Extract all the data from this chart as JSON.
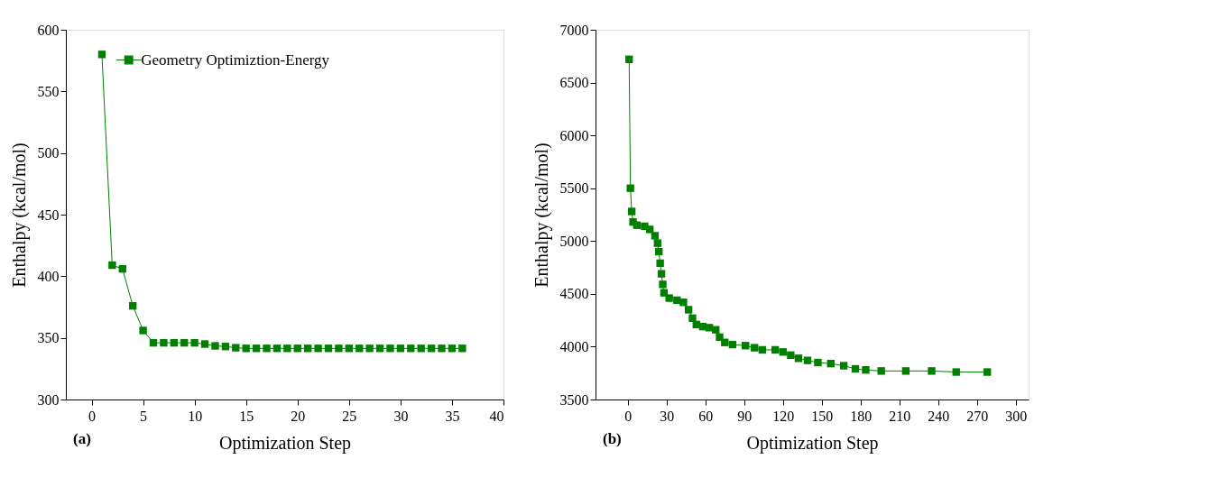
{
  "chart_data": [
    {
      "type": "line",
      "xlabel": "Optimization Step",
      "ylabel": "Enthalpy (kcal/mol)",
      "annotations": [
        "(a)"
      ],
      "xlim": [
        -2.5,
        40
      ],
      "xticks": [
        0,
        5,
        10,
        15,
        20,
        25,
        30,
        35,
        40
      ],
      "ylim": [
        300,
        600
      ],
      "yticks": [
        300,
        350,
        400,
        450,
        500,
        550,
        600
      ],
      "x": [
        1,
        2,
        3,
        4,
        5,
        6,
        7,
        8,
        9,
        10,
        11,
        12,
        13,
        14,
        15,
        16,
        17,
        18,
        19,
        20,
        21,
        22,
        23,
        24,
        25,
        26,
        27,
        28,
        29,
        30,
        31,
        32,
        33,
        34,
        35,
        36
      ],
      "series": [
        {
          "name": "Geometry Optimiztion-Energy",
          "color": "#007f00",
          "values": [
            580,
            409,
            406,
            376,
            356,
            346,
            346,
            346,
            346,
            346,
            345,
            343.5,
            343,
            342,
            341.5,
            341.5,
            341.5,
            341.5,
            341.5,
            341.5,
            341.5,
            341.5,
            341.5,
            341.5,
            341.5,
            341.5,
            341.5,
            341.5,
            341.5,
            341.5,
            341.5,
            341.5,
            341.5,
            341.5,
            341.5,
            341.5
          ]
        }
      ],
      "marker": "square",
      "line_style": "solid",
      "grid": false,
      "legend": "top left"
    },
    {
      "type": "line",
      "xlabel": "Optimization Step",
      "ylabel": "Enthalpy (kcal/mol)",
      "annotations": [
        "(b)"
      ],
      "xlim": [
        -25,
        310
      ],
      "xticks": [
        0,
        30,
        60,
        90,
        120,
        150,
        180,
        210,
        240,
        270,
        300
      ],
      "ylim": [
        3500,
        7000
      ],
      "yticks": [
        3500,
        4000,
        4500,
        5000,
        5500,
        6000,
        6500,
        7000
      ],
      "x": [
        1,
        2,
        3,
        4,
        7,
        13,
        17,
        21,
        23,
        24,
        25,
        26,
        27,
        28,
        32,
        38,
        43,
        47,
        50,
        53,
        58,
        63,
        68,
        71,
        75,
        81,
        91,
        98,
        104,
        114,
        120,
        126,
        132,
        139,
        147,
        157,
        167,
        176,
        184,
        196,
        215,
        235,
        254,
        278
      ],
      "series": [
        {
          "name": "Geometry Optimiztion-Energy",
          "color": "#007f00",
          "values": [
            6720,
            5500,
            5280,
            5180,
            5150,
            5140,
            5110,
            5050,
            4980,
            4900,
            4790,
            4690,
            4590,
            4510,
            4460,
            4440,
            4420,
            4350,
            4270,
            4210,
            4190,
            4180,
            4160,
            4090,
            4040,
            4020,
            4010,
            3990,
            3970,
            3970,
            3950,
            3920,
            3890,
            3870,
            3850,
            3840,
            3820,
            3790,
            3780,
            3770,
            3770,
            3770,
            3760,
            3760
          ]
        }
      ],
      "marker": "square",
      "line_style": "solid",
      "grid": false,
      "legend": "top left"
    }
  ]
}
